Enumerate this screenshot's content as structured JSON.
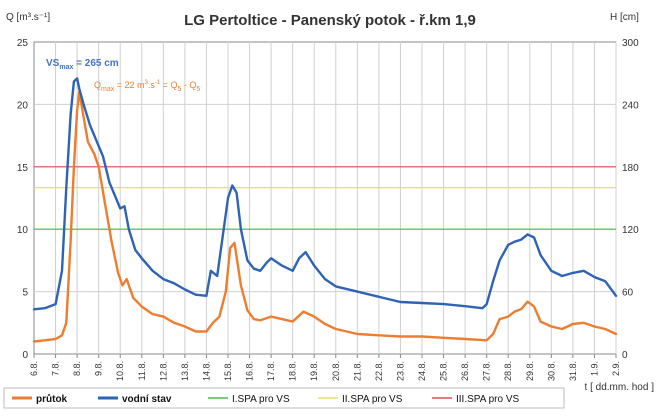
{
  "chart_data": {
    "type": "line",
    "title": "LG Pertoltice - Panenský potok - ř.km 1,9",
    "ylabel_left": "Q [m³.s⁻¹]",
    "ylabel_right": "H [cm]",
    "xlabel": "t [ dd.mm. hod ]",
    "ylim_left": [
      0,
      25
    ],
    "ylim_right": [
      0,
      300
    ],
    "yticks_left": [
      "0",
      "5",
      "10",
      "15",
      "20",
      "25"
    ],
    "yticks_right": [
      "0",
      "60",
      "120",
      "180",
      "240",
      "300"
    ],
    "x_start_day": 6,
    "x_end_day": 33,
    "categories": [
      "6.8.",
      "7.8.",
      "8.8.",
      "9.8.",
      "10.8.",
      "11.8.",
      "12.8.",
      "13.8.",
      "14.8.",
      "15.8.",
      "16.8.",
      "17.8.",
      "18.8.",
      "19.8.",
      "20.8.",
      "21.8.",
      "22.8.",
      "23.8.",
      "24.8.",
      "25.8.",
      "26.8.",
      "27.8.",
      "28.8.",
      "29.8.",
      "30.8.",
      "31.8.",
      "1.9.",
      "2.9."
    ],
    "grid": true,
    "annotations": {
      "vs_max": {
        "main": "VS",
        "sub": "max",
        "rest": " = 265 cm",
        "color": "#4472c4"
      },
      "q_max": {
        "main": "Q",
        "sub": "max",
        "mid": " = 22 m",
        "sup": "3",
        "mid2": ".s",
        "sup2": "-1",
        "mid3": " = Q",
        "sub2": "5",
        "mid4": " - Q",
        "sub3": "5",
        "color": "#ed7d31"
      }
    },
    "thresholds": [
      {
        "name": "I.SPA pro VS",
        "h_cm": 120,
        "color": "#4dbb4d"
      },
      {
        "name": "II.SPA pro VS",
        "h_cm": 160,
        "color": "#e8e060"
      },
      {
        "name": "III.SPA pro VS",
        "h_cm": 180,
        "color": "#e05050"
      }
    ],
    "series": [
      {
        "name": "průtok",
        "axis": "left",
        "color": "#ed7d31",
        "x": [
          6.0,
          6.5,
          7.0,
          7.3,
          7.5,
          7.7,
          7.85,
          8.0,
          8.1,
          8.3,
          8.5,
          8.8,
          9.0,
          9.3,
          9.6,
          9.9,
          10.1,
          10.3,
          10.6,
          11.0,
          11.5,
          12.0,
          12.5,
          13.0,
          13.5,
          14.0,
          14.3,
          14.6,
          14.9,
          15.1,
          15.3,
          15.6,
          15.9,
          16.2,
          16.5,
          17.0,
          17.5,
          18.0,
          18.5,
          19.0,
          19.5,
          20.0,
          20.5,
          21.0,
          22.0,
          23.0,
          24.0,
          25.0,
          26.0,
          27.0,
          27.3,
          27.6,
          28.0,
          28.3,
          28.6,
          28.9,
          29.2,
          29.5,
          30.0,
          30.5,
          31.0,
          31.5,
          32.0,
          32.5,
          33.0
        ],
        "values": [
          1.0,
          1.1,
          1.2,
          1.5,
          2.5,
          9.0,
          15.0,
          19.5,
          21.0,
          19.0,
          17.0,
          16.0,
          15.0,
          12.0,
          9.0,
          6.5,
          5.5,
          6.0,
          4.5,
          3.8,
          3.2,
          3.0,
          2.5,
          2.2,
          1.8,
          1.8,
          2.5,
          3.0,
          5.0,
          8.5,
          8.9,
          5.5,
          3.5,
          2.8,
          2.7,
          3.0,
          2.8,
          2.6,
          3.4,
          3.0,
          2.4,
          2.0,
          1.8,
          1.6,
          1.5,
          1.4,
          1.4,
          1.3,
          1.2,
          1.1,
          1.6,
          2.8,
          3.0,
          3.4,
          3.6,
          4.2,
          3.8,
          2.6,
          2.2,
          2.0,
          2.4,
          2.5,
          2.2,
          2.0,
          1.6
        ]
      },
      {
        "name": "vodní stav",
        "axis": "right",
        "color": "#2f63b4",
        "x": [
          6.0,
          6.5,
          7.0,
          7.3,
          7.5,
          7.7,
          7.85,
          8.0,
          8.1,
          8.3,
          8.6,
          8.9,
          9.2,
          9.5,
          9.8,
          10.0,
          10.2,
          10.4,
          10.7,
          11.0,
          11.5,
          12.0,
          12.5,
          13.0,
          13.5,
          14.0,
          14.2,
          14.5,
          14.8,
          15.0,
          15.2,
          15.4,
          15.6,
          15.9,
          16.2,
          16.5,
          16.8,
          17.0,
          17.5,
          18.0,
          18.3,
          18.6,
          19.0,
          19.5,
          20.0,
          21.0,
          22.0,
          23.0,
          24.0,
          25.0,
          26.0,
          26.8,
          27.0,
          27.3,
          27.6,
          28.0,
          28.3,
          28.6,
          28.9,
          29.2,
          29.5,
          30.0,
          30.5,
          31.0,
          31.5,
          32.0,
          32.5,
          33.0
        ],
        "values": [
          43,
          44,
          48,
          80,
          160,
          230,
          262,
          265,
          255,
          240,
          220,
          205,
          190,
          165,
          150,
          140,
          142,
          120,
          100,
          92,
          80,
          72,
          68,
          62,
          57,
          56,
          80,
          75,
          120,
          150,
          162,
          155,
          120,
          90,
          82,
          80,
          88,
          92,
          85,
          80,
          92,
          98,
          85,
          72,
          65,
          60,
          55,
          50,
          49,
          48,
          46,
          44,
          48,
          70,
          90,
          105,
          108,
          110,
          115,
          112,
          95,
          80,
          75,
          78,
          80,
          74,
          70,
          56
        ]
      }
    ]
  },
  "legend": [
    {
      "label": "průtok",
      "color": "#ed7d31",
      "thick": true
    },
    {
      "label": "vodní stav",
      "color": "#2f63b4",
      "thick": true
    },
    {
      "label": "I.SPA pro VS",
      "color": "#4dbb4d",
      "thick": false
    },
    {
      "label": "II.SPA pro VS",
      "color": "#e8e060",
      "thick": false
    },
    {
      "label": "III.SPA pro VS",
      "color": "#e05050",
      "thick": false
    }
  ]
}
